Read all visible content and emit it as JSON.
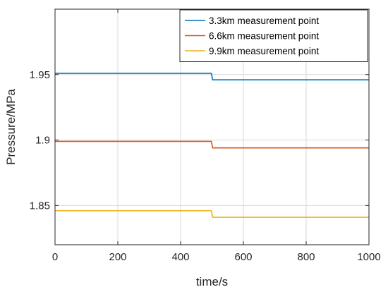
{
  "chart_data": {
    "type": "line",
    "xlabel": "time/s",
    "ylabel": "Pressure/MPa",
    "xlim": [
      0,
      1000
    ],
    "ylim": [
      1.82,
      2.0
    ],
    "xticks": [
      0,
      200,
      400,
      600,
      800,
      1000
    ],
    "xtick_labels": [
      "0",
      "200",
      "400",
      "600",
      "800",
      "1000"
    ],
    "yticks": [
      1.85,
      1.9,
      1.95
    ],
    "ytick_labels": [
      "1.85",
      "1.9",
      "1.95"
    ],
    "grid": true,
    "legend_position": "top-right",
    "x": [
      0,
      498,
      502,
      1000
    ],
    "series": [
      {
        "name": "3.3km measurement point",
        "color": "#0072BD",
        "values": [
          1.951,
          1.951,
          1.946,
          1.946
        ]
      },
      {
        "name": "6.6km measurement point",
        "color": "#D95319",
        "values": [
          1.899,
          1.899,
          1.894,
          1.894
        ]
      },
      {
        "name": "9.9km measurement point",
        "color": "#EDB120",
        "values": [
          1.846,
          1.846,
          1.841,
          1.841
        ]
      }
    ]
  }
}
